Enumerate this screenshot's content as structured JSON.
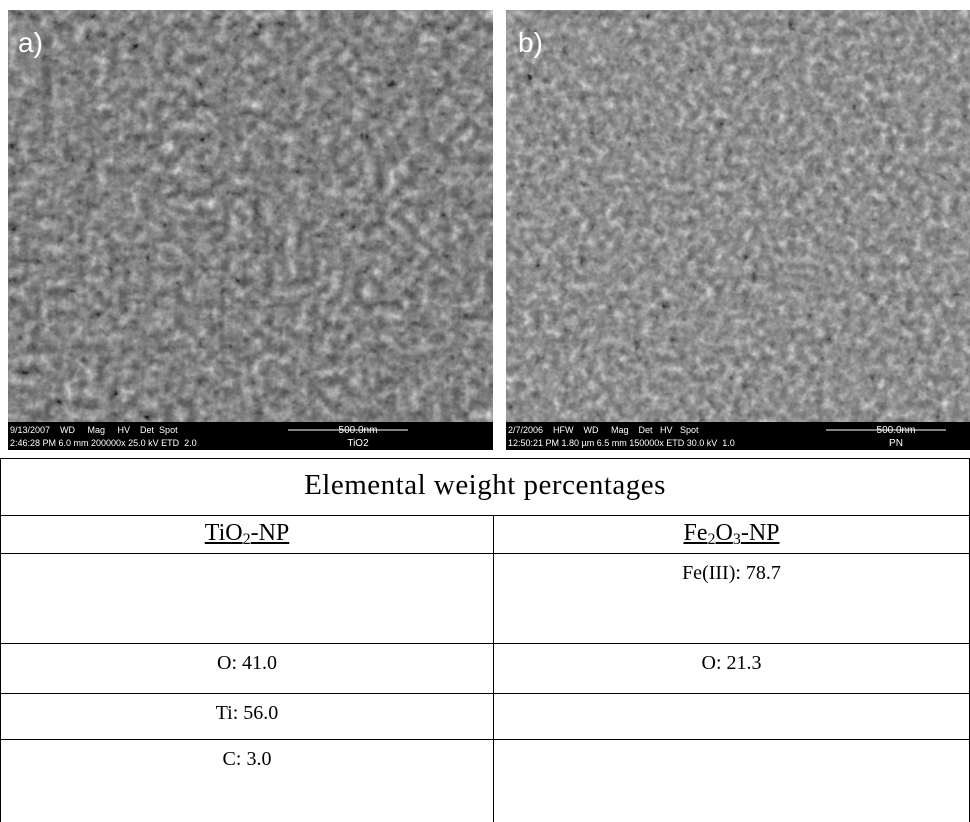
{
  "figures": [
    {
      "label": "a)",
      "info_line1": "9/13/2007    WD     Mag     HV    Det  Spot",
      "info_line2": "2:46:28 PM 6.0 mm 200000x 25.0 kV ETD  2.0",
      "scale": "500.0nm",
      "sample": "TiO2"
    },
    {
      "label": "b)",
      "info_line1": "2/7/2006    HFW    WD     Mag    Det   HV   Spot",
      "info_line2": "12:50:21 PM 1.80 µm 6.5 mm 150000x ETD 30.0 kV  1.0",
      "scale": "500.0nm",
      "sample": "PN"
    }
  ],
  "table": {
    "title": "Elemental weight percentages",
    "headers": [
      [
        "TiO",
        "2",
        "-NP"
      ],
      [
        "Fe",
        "2",
        "O",
        "3",
        "-NP"
      ]
    ],
    "rows": [
      [
        null,
        "Fe(III): 78.7"
      ],
      [
        "O: 41.0",
        "O: 21.3"
      ],
      [
        "Ti: 56.0",
        null
      ],
      [
        "C: 3.0",
        null
      ]
    ]
  }
}
